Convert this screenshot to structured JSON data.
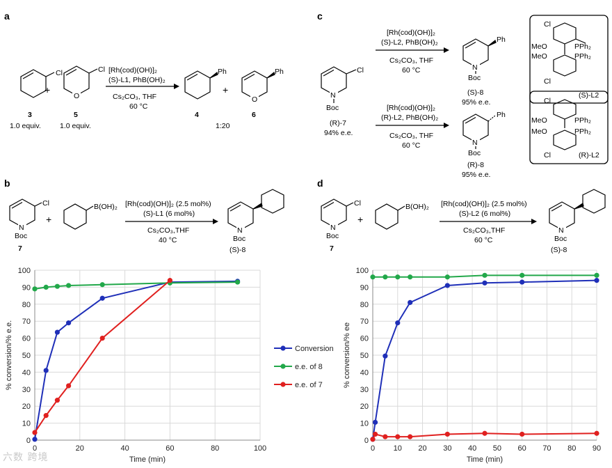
{
  "panels": {
    "a": {
      "label": "a",
      "cond1": "[Rh(cod)(OH)]₂",
      "cond2": "(S)-L1, PhB(OH)₂",
      "cond3": "Cs₂CO₃, THF",
      "cond4": "60 °C",
      "sm1": {
        "num": "3",
        "equiv": "1.0 equiv."
      },
      "sm2": {
        "num": "5",
        "equiv": "1.0 equiv."
      },
      "p1": {
        "num": "4"
      },
      "p2": {
        "num": "6"
      },
      "ratio": "1:20",
      "plus": "+",
      "atoms": {
        "cl": "Cl",
        "o": "O",
        "ph": "Ph"
      }
    },
    "b": {
      "label": "b",
      "cond1": "[Rh(cod)(OH)]₂ (2.5 mol%)",
      "cond2": "(S)-L1 (6 mol%)",
      "cond3": "Cs₂CO₃,THF",
      "cond4": "40 °C",
      "sm": "7",
      "product": "(S)-8",
      "boronic": "B(OH)₂",
      "atoms": {
        "cl": "Cl",
        "n": "N",
        "boc": "Boc"
      }
    },
    "c": {
      "label": "c",
      "top": {
        "cond1": "[Rh(cod)(OH)]₂",
        "cond2": "(S)-L2, PhB(OH)₂",
        "cond3": "Cs₂CO₃, THF",
        "cond4": "60 °C",
        "product": "(S)-8",
        "ee": "95% e.e."
      },
      "bottom": {
        "cond1": "[Rh(cod)(OH)]₂",
        "cond2": "(R)-L2, PhB(OH)₂",
        "cond3": "Cs₂CO₃, THF",
        "cond4": "60 °C",
        "product": "(R)-8",
        "ee": "95% e.e."
      },
      "sm": "(R)-7",
      "sm_ee": "94% e.e.",
      "ligand_top": "(S)-L2",
      "ligand_bottom": "(R)-L2",
      "lig_atoms": {
        "cl": "Cl",
        "meo": "MeO",
        "pph2": "PPh₂"
      },
      "atoms": {
        "cl": "Cl",
        "n": "N",
        "boc": "Boc",
        "ph": "Ph"
      }
    },
    "d": {
      "label": "d",
      "cond1": "[Rh(cod)(OH)]₂ (2.5 mol%)",
      "cond2": "(S)-L2 (6 mol%)",
      "cond3": "Cs₂CO₃,THF",
      "cond4": "60 °C",
      "sm": "7",
      "product": "(S)-8",
      "boronic": "B(OH)₂",
      "atoms": {
        "cl": "Cl",
        "n": "N",
        "boc": "Boc"
      }
    }
  },
  "legend": {
    "conversion": "Conversion",
    "ee8": "e.e. of 8",
    "ee7": "e.e. of 7"
  },
  "watermark": "六数 跨境",
  "chart_data": [
    {
      "type": "line",
      "xlabel": "Time (min)",
      "ylabel": "% conversion/% e.e.",
      "xlim": [
        0,
        100
      ],
      "ylim": [
        0,
        100
      ],
      "xticks": [
        0,
        20,
        40,
        60,
        80,
        100
      ],
      "yticks": [
        0,
        10,
        20,
        30,
        40,
        50,
        60,
        70,
        80,
        90,
        100
      ],
      "grid": true,
      "series": [
        {
          "name": "Conversion",
          "color": "#1f2fb8",
          "x": [
            0,
            5,
            10,
            15,
            30,
            60,
            90
          ],
          "y": [
            0.5,
            41,
            63.5,
            69,
            83.5,
            93,
            93.5
          ]
        },
        {
          "name": "e.e. of 8",
          "color": "#22a84a",
          "x": [
            0,
            5,
            10,
            15,
            30,
            60,
            90
          ],
          "y": [
            89,
            90,
            90.5,
            91,
            91.5,
            92.5,
            93
          ]
        },
        {
          "name": "e.e. of 7",
          "color": "#e0201f",
          "x": [
            0,
            5,
            10,
            15,
            30,
            60
          ],
          "y": [
            4.5,
            14.5,
            23.5,
            32,
            60,
            94
          ]
        }
      ]
    },
    {
      "type": "line",
      "xlabel": "Time (min)",
      "ylabel": "% conversion/% ee",
      "xlim": [
        0,
        90
      ],
      "ylim": [
        0,
        100
      ],
      "xticks": [
        0,
        10,
        20,
        30,
        40,
        50,
        60,
        70,
        80,
        90
      ],
      "yticks": [
        0,
        10,
        20,
        30,
        40,
        50,
        60,
        70,
        80,
        90,
        100
      ],
      "grid": true,
      "series": [
        {
          "name": "Conversion",
          "color": "#1f2fb8",
          "x": [
            0,
            1,
            5,
            10,
            15,
            30,
            45,
            60,
            90
          ],
          "y": [
            0.5,
            10.5,
            49.5,
            69,
            81,
            91,
            92.5,
            93,
            94
          ]
        },
        {
          "name": "e.e. of 8",
          "color": "#22a84a",
          "x": [
            0,
            5,
            10,
            15,
            30,
            45,
            60,
            90
          ],
          "y": [
            96,
            96,
            96,
            96,
            96,
            97,
            97,
            97
          ]
        },
        {
          "name": "e.e. of 7",
          "color": "#e0201f",
          "x": [
            0,
            1,
            5,
            10,
            15,
            30,
            45,
            60,
            90
          ],
          "y": [
            0.5,
            3.5,
            2,
            2,
            2,
            3.5,
            4,
            3.5,
            4
          ]
        }
      ]
    }
  ]
}
